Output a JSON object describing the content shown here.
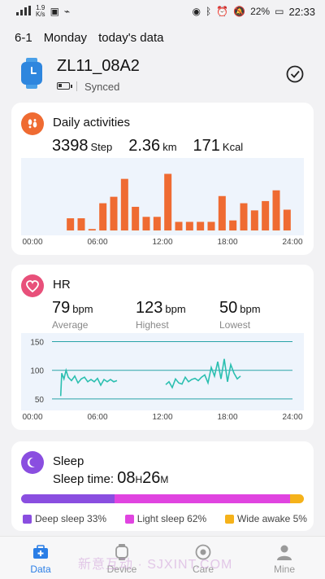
{
  "status": {
    "signal_label": "4G",
    "speed": "1.9",
    "speed_unit": "K/s",
    "battery": "22%",
    "time": "22:33"
  },
  "header": {
    "date": "6-1",
    "weekday": "Monday",
    "label": "today's data"
  },
  "device": {
    "name": "ZL11_08A2",
    "status": "Synced"
  },
  "activities": {
    "title": "Daily activities",
    "steps": "3398",
    "steps_unit": "Step",
    "distance": "2.36",
    "distance_unit": "km",
    "calories": "171",
    "calories_unit": "Kcal"
  },
  "hr": {
    "title": "HR",
    "average": "79",
    "average_label": "Average",
    "highest": "123",
    "highest_label": "Highest",
    "lowest": "50",
    "lowest_label": "Lowest",
    "unit": "bpm"
  },
  "sleep": {
    "title": "Sleep",
    "label": "Sleep time:",
    "hours": "08",
    "hours_unit": "H",
    "minutes": "26",
    "minutes_unit": "M",
    "legend": [
      {
        "label": "Deep sleep 33%",
        "color": "#8a4ee0"
      },
      {
        "label": "Light sleep 62%",
        "color": "#e044e0"
      },
      {
        "label": "Wide awake 5%",
        "color": "#f5b21a"
      }
    ]
  },
  "tabs": [
    {
      "label": "Data",
      "icon": "data-icon",
      "active": true
    },
    {
      "label": "Device",
      "icon": "watch-icon",
      "active": false
    },
    {
      "label": "Care",
      "icon": "care-icon",
      "active": false
    },
    {
      "label": "Mine",
      "icon": "person-icon",
      "active": false
    }
  ],
  "watermark": "新意互动 · SJXINT.COM",
  "chart_data": [
    {
      "type": "bar",
      "title": "Daily activities",
      "x_ticks": [
        "00:00",
        "06:00",
        "12:00",
        "18:00",
        "24:00"
      ],
      "x_range": [
        0,
        24
      ],
      "y_axis_printed": false,
      "color": "#ef6b32",
      "hours": [
        3,
        4,
        5,
        6,
        7,
        8,
        9,
        10,
        11,
        12,
        13,
        14,
        15,
        16,
        17,
        18,
        19,
        20,
        21,
        22,
        23
      ],
      "values": [
        0.17,
        0.17,
        0.02,
        0.38,
        0.47,
        0.72,
        0.33,
        0.19,
        0.19,
        0.79,
        0.12,
        0.12,
        0.12,
        0.12,
        0.48,
        0.14,
        0.38,
        0.28,
        0.41,
        0.56,
        0.29
      ]
    },
    {
      "type": "line",
      "title": "HR",
      "x_ticks": [
        "00:00",
        "06:00",
        "12:00",
        "18:00",
        "24:00"
      ],
      "x_range": [
        0,
        24
      ],
      "y_ticks": [
        150,
        100,
        50
      ],
      "y_range": [
        30,
        165
      ],
      "color": "#2bbfb0",
      "segments": [
        {
          "x": [
            2.6,
            2.7,
            2.9,
            3.1,
            3.3,
            3.6,
            3.9,
            4.2,
            4.5,
            4.8,
            5.1,
            5.4,
            5.7,
            6.0,
            6.3,
            6.6,
            6.9,
            7.2,
            7.5,
            7.8
          ],
          "y": [
            55,
            95,
            85,
            100,
            88,
            82,
            90,
            78,
            85,
            88,
            80,
            84,
            80,
            86,
            74,
            84,
            80,
            84,
            80,
            82
          ]
        },
        {
          "x": [
            12.3,
            12.6,
            12.9,
            13.2,
            13.5,
            13.8,
            14.1,
            14.4,
            14.7,
            15.0,
            15.3,
            15.6,
            15.9,
            16.2,
            16.5,
            16.8,
            17.1,
            17.4,
            17.7,
            18.0,
            18.3,
            18.6,
            18.9,
            19.2
          ],
          "y": [
            75,
            80,
            70,
            85,
            78,
            76,
            88,
            80,
            84,
            86,
            82,
            88,
            92,
            78,
            105,
            90,
            115,
            85,
            120,
            80,
            110,
            95,
            85,
            90
          ]
        }
      ]
    }
  ]
}
